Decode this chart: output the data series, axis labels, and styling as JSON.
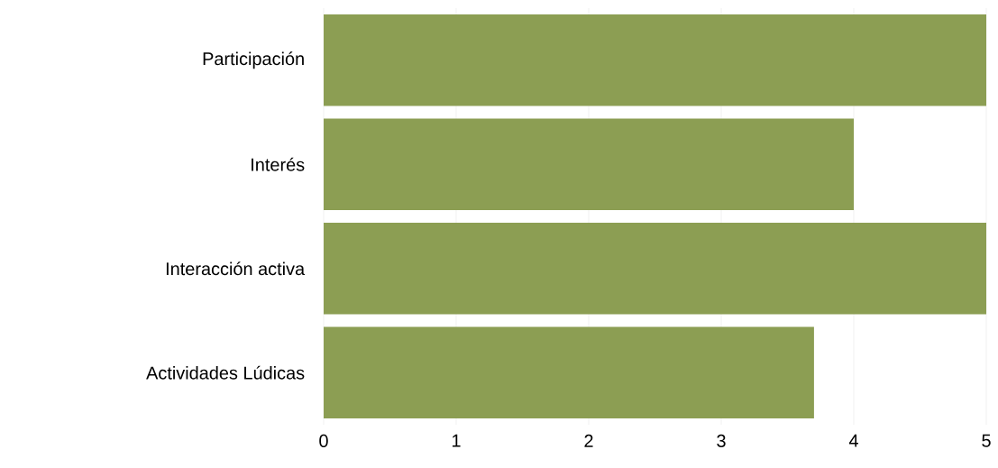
{
  "chart_data": {
    "type": "bar",
    "orientation": "horizontal",
    "categories": [
      "Participación",
      "Interés",
      "Interacción activa",
      "Actividades Lúdicas"
    ],
    "values": [
      5,
      4,
      5,
      3.7
    ],
    "color": "#8c9e53",
    "xlim": [
      0,
      5
    ],
    "xticks": [
      0,
      1,
      2,
      3,
      4,
      5
    ],
    "grid": "x"
  }
}
